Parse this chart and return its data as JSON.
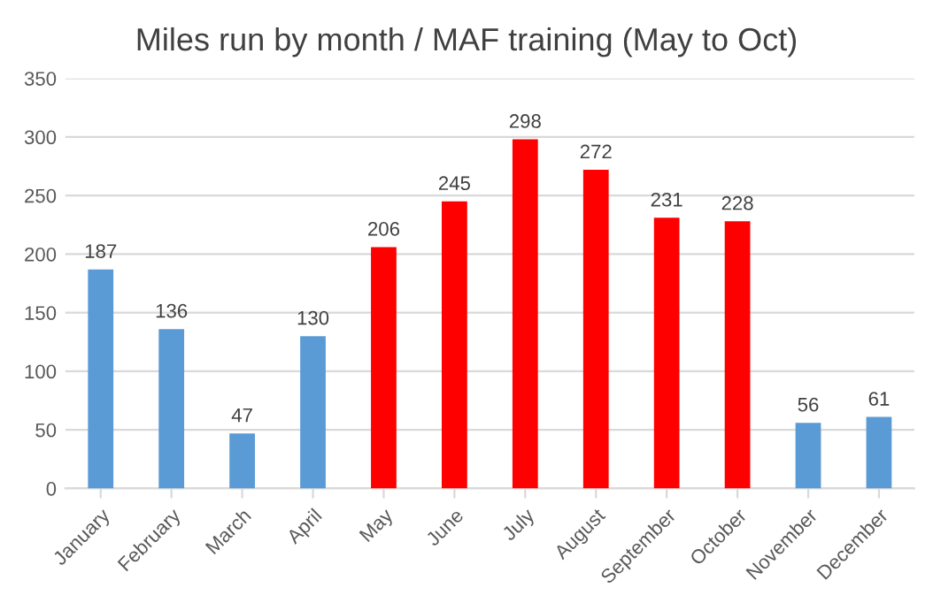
{
  "chart_data": {
    "type": "bar",
    "title": "Miles run by month / MAF training (May to Oct)",
    "categories": [
      "January",
      "February",
      "March",
      "April",
      "May",
      "June",
      "July",
      "August",
      "September",
      "October",
      "November",
      "December"
    ],
    "values": [
      187,
      136,
      47,
      130,
      206,
      245,
      298,
      272,
      231,
      228,
      56,
      61
    ],
    "colors": [
      "#5b9bd5",
      "#5b9bd5",
      "#5b9bd5",
      "#5b9bd5",
      "#ff0000",
      "#ff0000",
      "#ff0000",
      "#ff0000",
      "#ff0000",
      "#ff0000",
      "#5b9bd5",
      "#5b9bd5"
    ],
    "ylim": [
      0,
      350
    ],
    "yticks": [
      0,
      50,
      100,
      150,
      200,
      250,
      300,
      350
    ],
    "grid": "y",
    "data_labels": true
  }
}
